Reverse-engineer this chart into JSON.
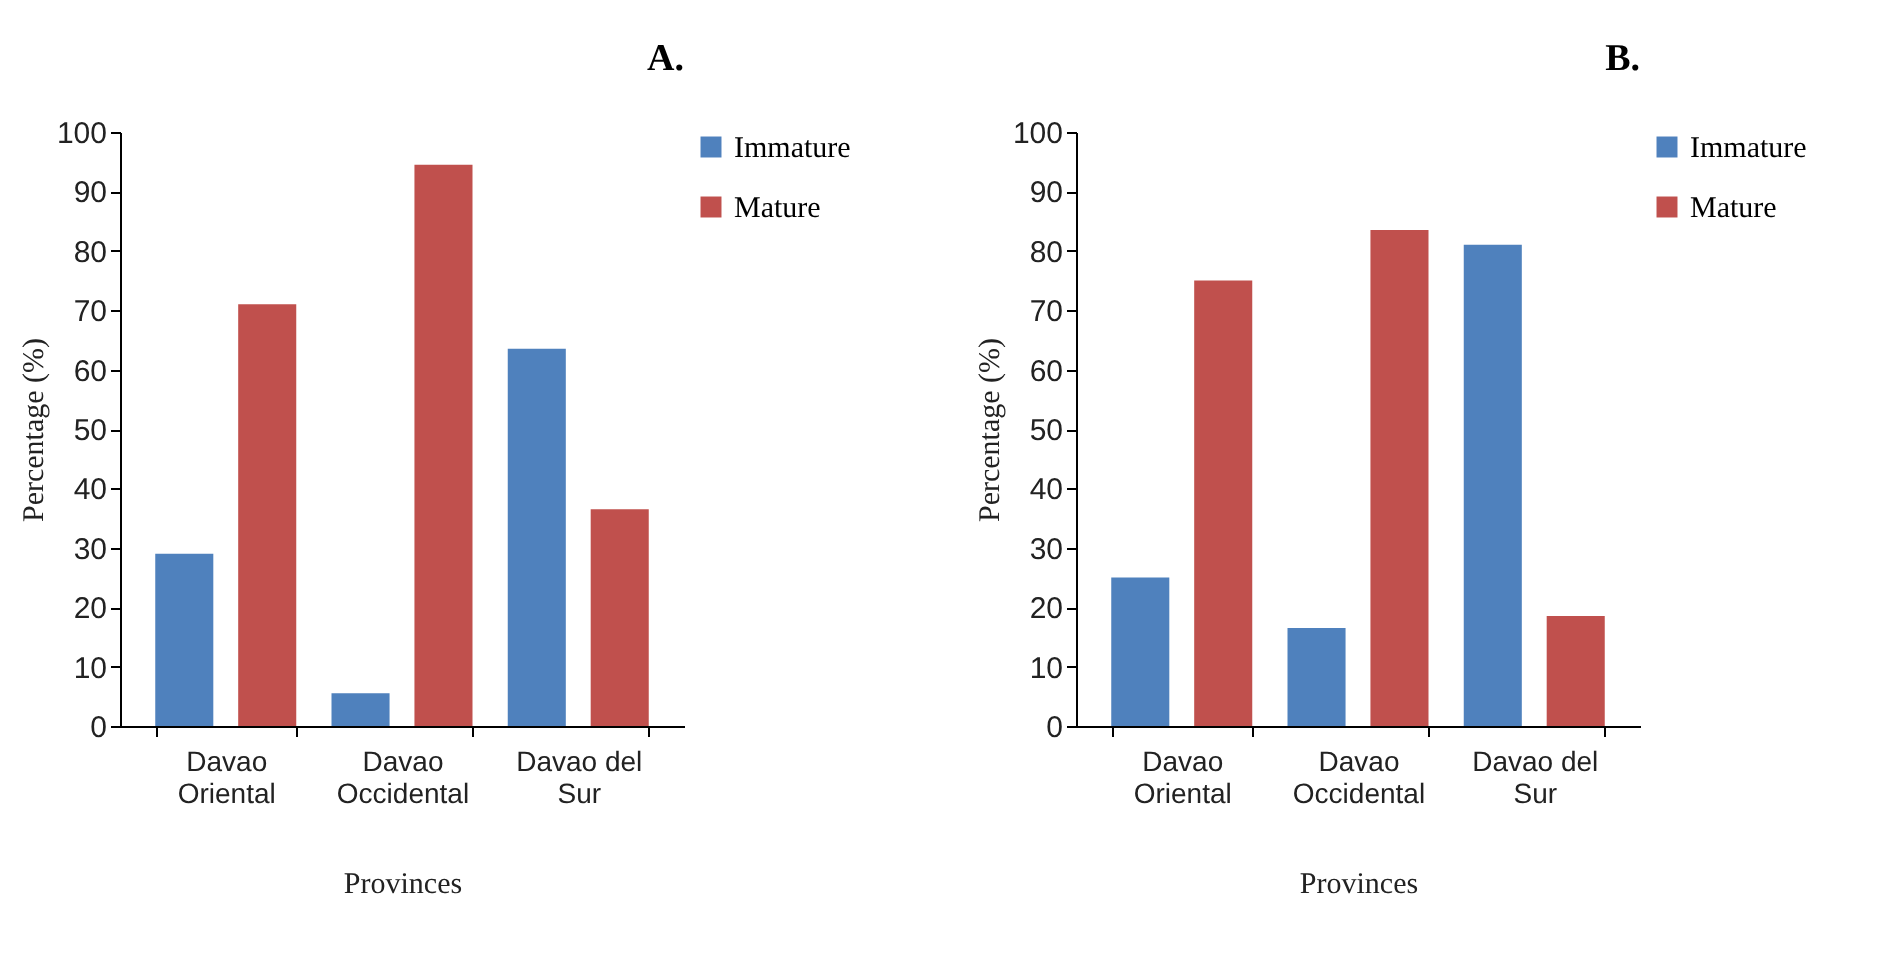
{
  "chart_data": [
    {
      "type": "bar",
      "title": "A.",
      "xlabel": "Provinces",
      "ylabel": "Percentage (%)",
      "categories": [
        "Davao\nOriental",
        "Davao\nOccidental",
        "Davao del\nSur"
      ],
      "series": [
        {
          "name": "Immature",
          "color": "#4f81bd",
          "values": [
            29,
            5.5,
            63.5
          ]
        },
        {
          "name": "Mature",
          "color": "#c0504d",
          "values": [
            71,
            94.5,
            36.5
          ]
        }
      ],
      "ylim": [
        0,
        100
      ],
      "yticks": [
        0,
        10,
        20,
        30,
        40,
        50,
        60,
        70,
        80,
        90,
        100
      ],
      "grid": false,
      "legend": "right"
    },
    {
      "type": "bar",
      "title": "B.",
      "xlabel": "Provinces",
      "ylabel": "Percentage (%)",
      "categories": [
        "Davao\nOriental",
        "Davao\nOccidental",
        "Davao del\nSur"
      ],
      "series": [
        {
          "name": "Immature",
          "color": "#4f81bd",
          "values": [
            25,
            16.5,
            81
          ]
        },
        {
          "name": "Mature",
          "color": "#c0504d",
          "values": [
            75,
            83.5,
            18.5
          ]
        }
      ],
      "ylim": [
        0,
        100
      ],
      "yticks": [
        0,
        10,
        20,
        30,
        40,
        50,
        60,
        70,
        80,
        90,
        100
      ],
      "grid": false,
      "legend": "top right"
    }
  ]
}
